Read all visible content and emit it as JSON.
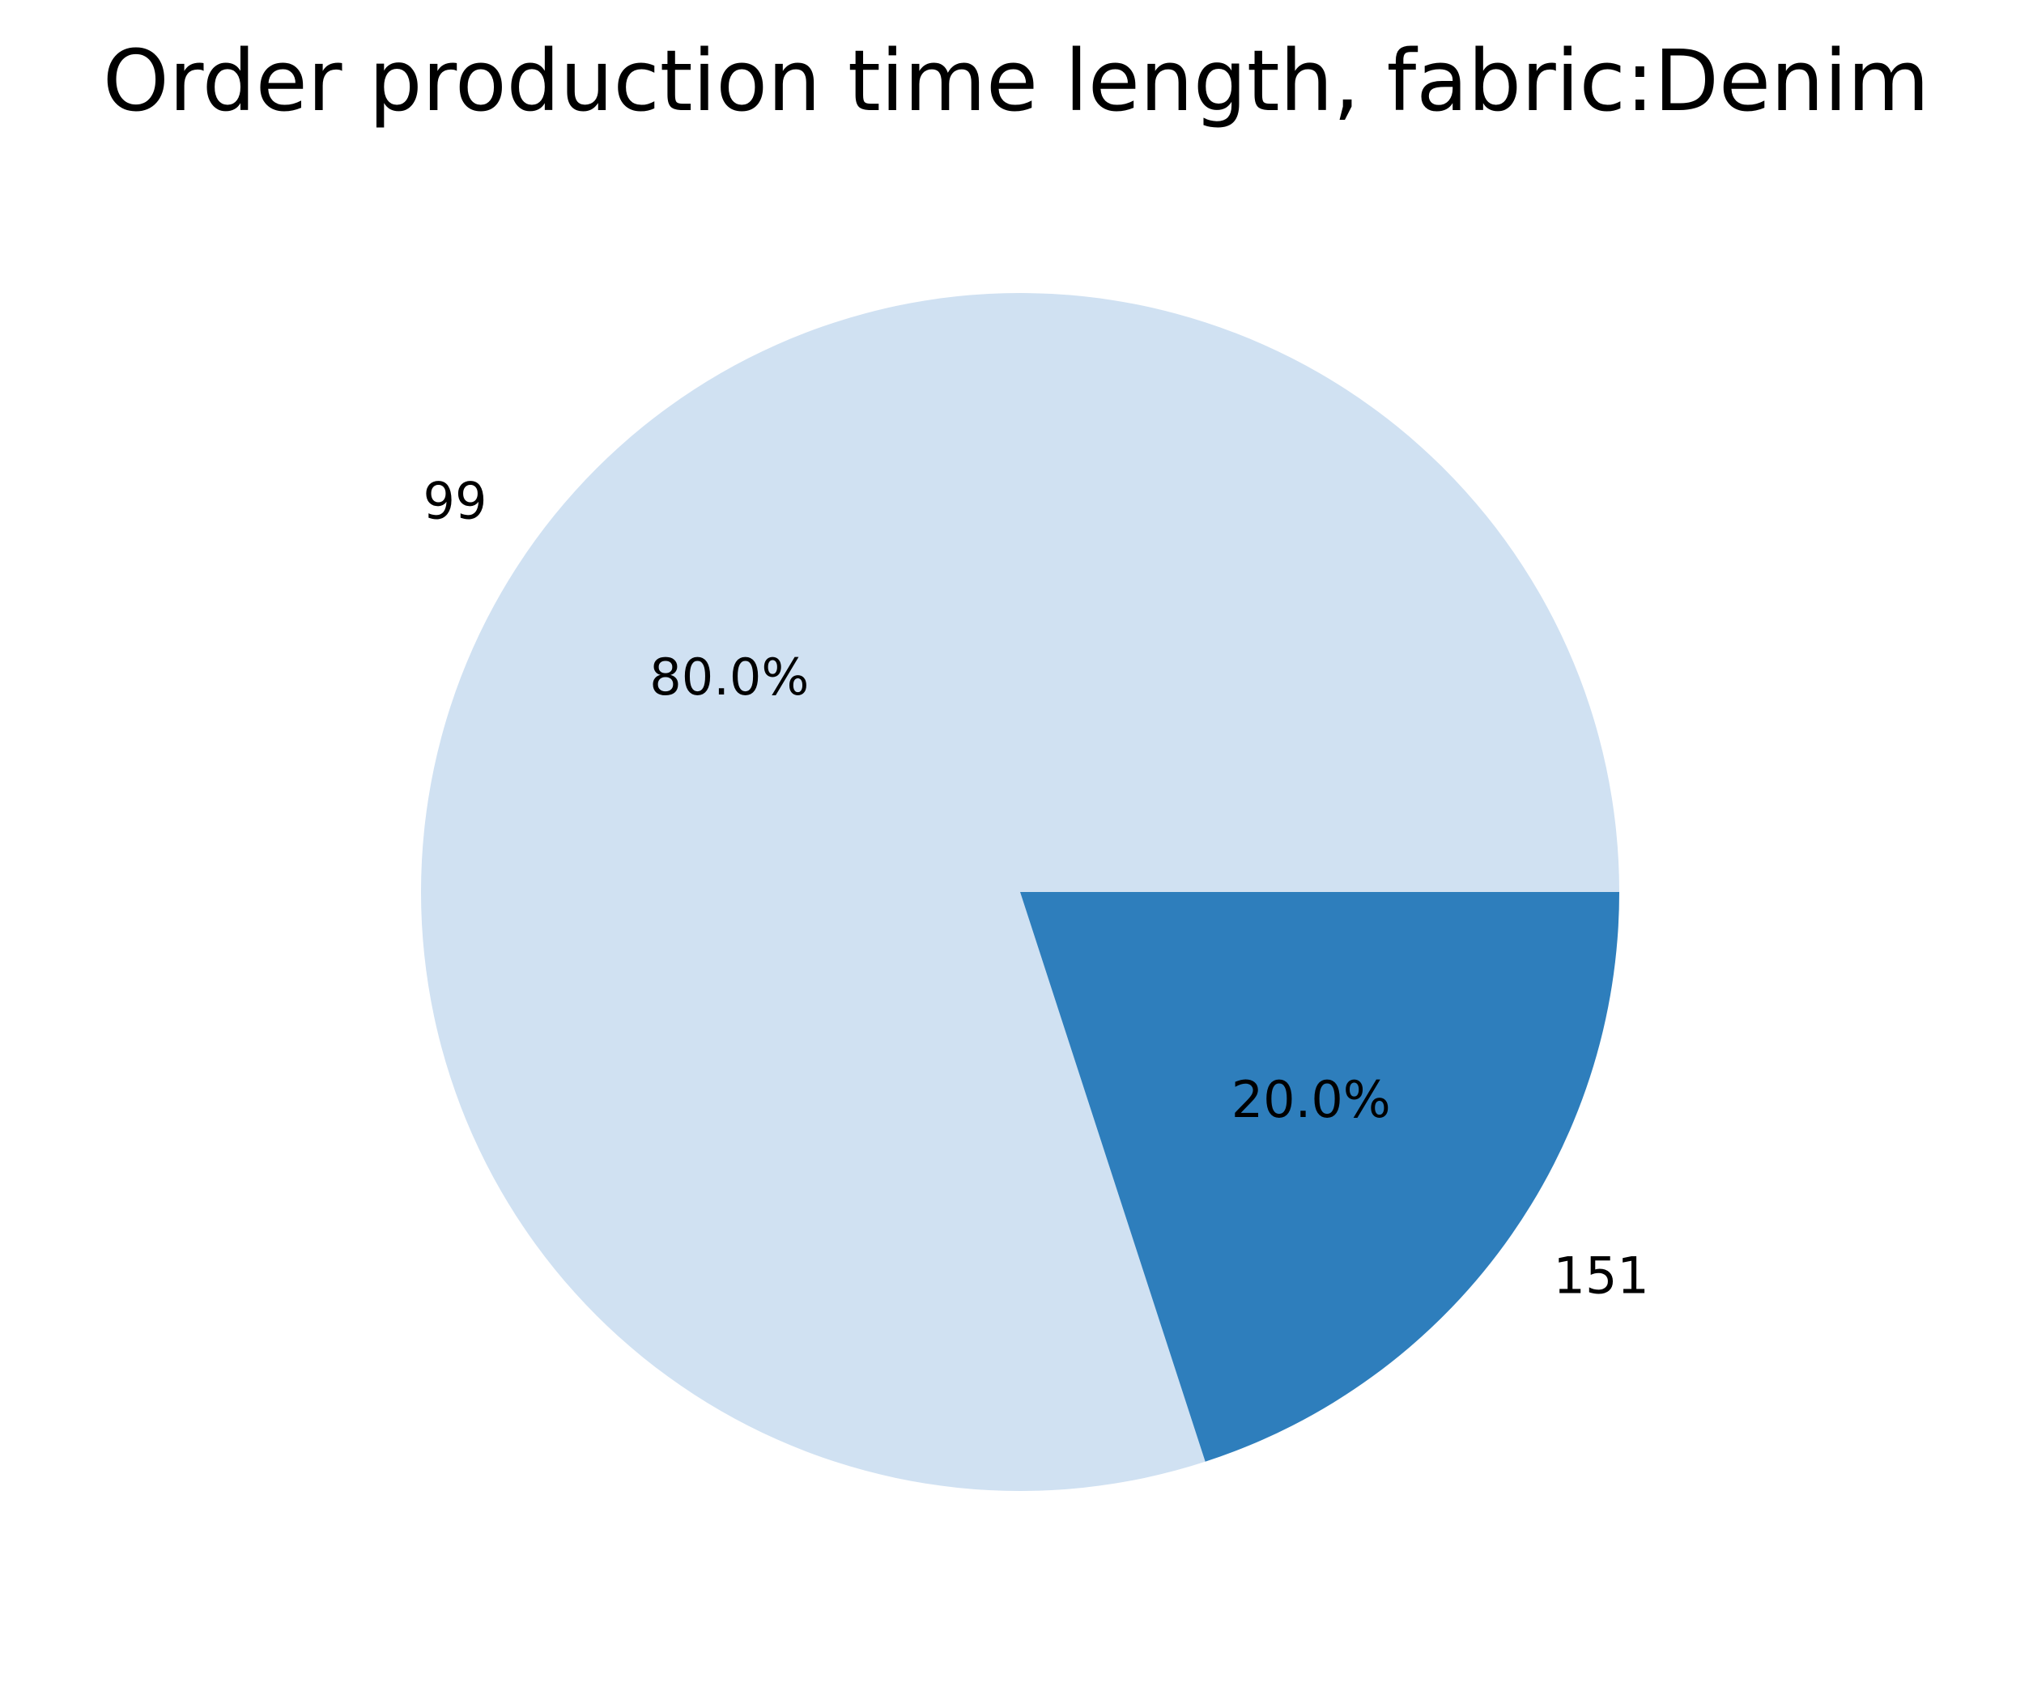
{
  "chart_data": {
    "type": "pie",
    "title": "Order production time length, fabric:Denim",
    "categories": [
      "99",
      "151"
    ],
    "values": [
      80.0,
      20.0
    ],
    "percent_labels": [
      "80.0%",
      "20.0%"
    ],
    "colors": [
      "#d0e1f2",
      "#2e7ebc"
    ],
    "start_angle_deg": 0,
    "direction": "counterclockwise",
    "legend": "none"
  }
}
